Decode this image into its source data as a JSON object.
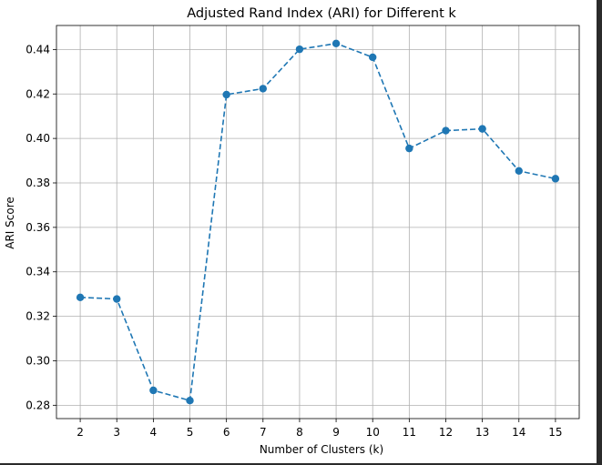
{
  "chart_data": {
    "type": "line",
    "title": "Adjusted Rand Index (ARI) for Different k",
    "xlabel": "Number of Clusters (k)",
    "ylabel": "ARI Score",
    "x": [
      2,
      3,
      4,
      5,
      6,
      7,
      8,
      9,
      10,
      11,
      12,
      13,
      14,
      15
    ],
    "series": [
      {
        "values": [
          0.3285,
          0.3278,
          0.2867,
          0.2821,
          0.4197,
          0.4224,
          0.4401,
          0.4427,
          0.4365,
          0.3955,
          0.4035,
          0.4043,
          0.3854,
          0.3819
        ],
        "color": "#1f77b4",
        "line_style": "dashed",
        "marker": "circle"
      }
    ],
    "xticks": [
      "2",
      "3",
      "4",
      "5",
      "6",
      "7",
      "8",
      "9",
      "10",
      "11",
      "12",
      "13",
      "14",
      "15"
    ],
    "yticks": [
      "0.28",
      "0.30",
      "0.32",
      "0.34",
      "0.36",
      "0.38",
      "0.40",
      "0.42",
      "0.44"
    ],
    "xlim": [
      1.35,
      15.65
    ],
    "ylim": [
      0.274,
      0.4508
    ],
    "grid": true,
    "legend": "none"
  }
}
